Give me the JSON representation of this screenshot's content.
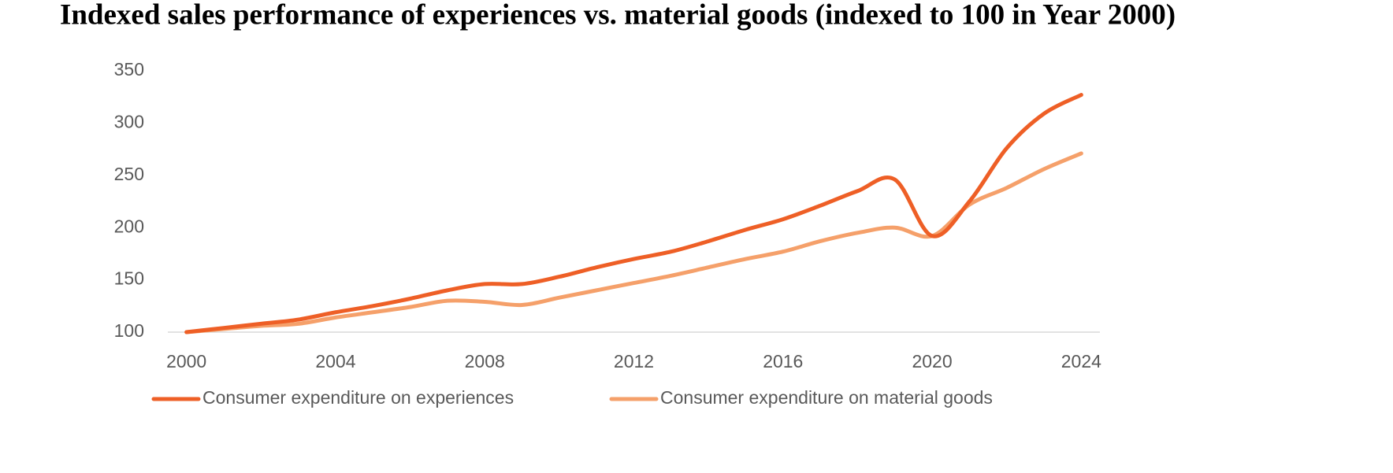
{
  "chart_data": {
    "type": "line",
    "title": "Indexed sales performance of experiences vs. material goods (indexed to 100 in Year 2000)",
    "x": [
      2000,
      2001,
      2002,
      2003,
      2004,
      2005,
      2006,
      2007,
      2008,
      2009,
      2010,
      2011,
      2012,
      2013,
      2014,
      2015,
      2016,
      2017,
      2018,
      2019,
      2020,
      2021,
      2022,
      2023,
      2024
    ],
    "series": [
      {
        "name": "Consumer expenditure on experiences",
        "color": "#ee5f26",
        "values": [
          100,
          104,
          108,
          112,
          119,
          125,
          132,
          140,
          146,
          146,
          153,
          162,
          170,
          177,
          187,
          198,
          208,
          221,
          235,
          246,
          192,
          225,
          276,
          309,
          327
        ]
      },
      {
        "name": "Consumer expenditure on material goods",
        "color": "#f5a06a",
        "values": [
          100,
          103,
          106,
          108,
          114,
          119,
          124,
          130,
          129,
          126,
          133,
          140,
          147,
          154,
          162,
          170,
          177,
          187,
          195,
          200,
          192,
          222,
          238,
          256,
          271
        ]
      }
    ],
    "xlim": [
      1999.5,
      2024.5
    ],
    "xticks": [
      2000,
      2004,
      2008,
      2012,
      2016,
      2020,
      2024
    ],
    "ylim": [
      100,
      350
    ],
    "yticks": [
      100,
      150,
      200,
      250,
      300,
      350
    ],
    "grid": false,
    "legend": "bottom"
  }
}
